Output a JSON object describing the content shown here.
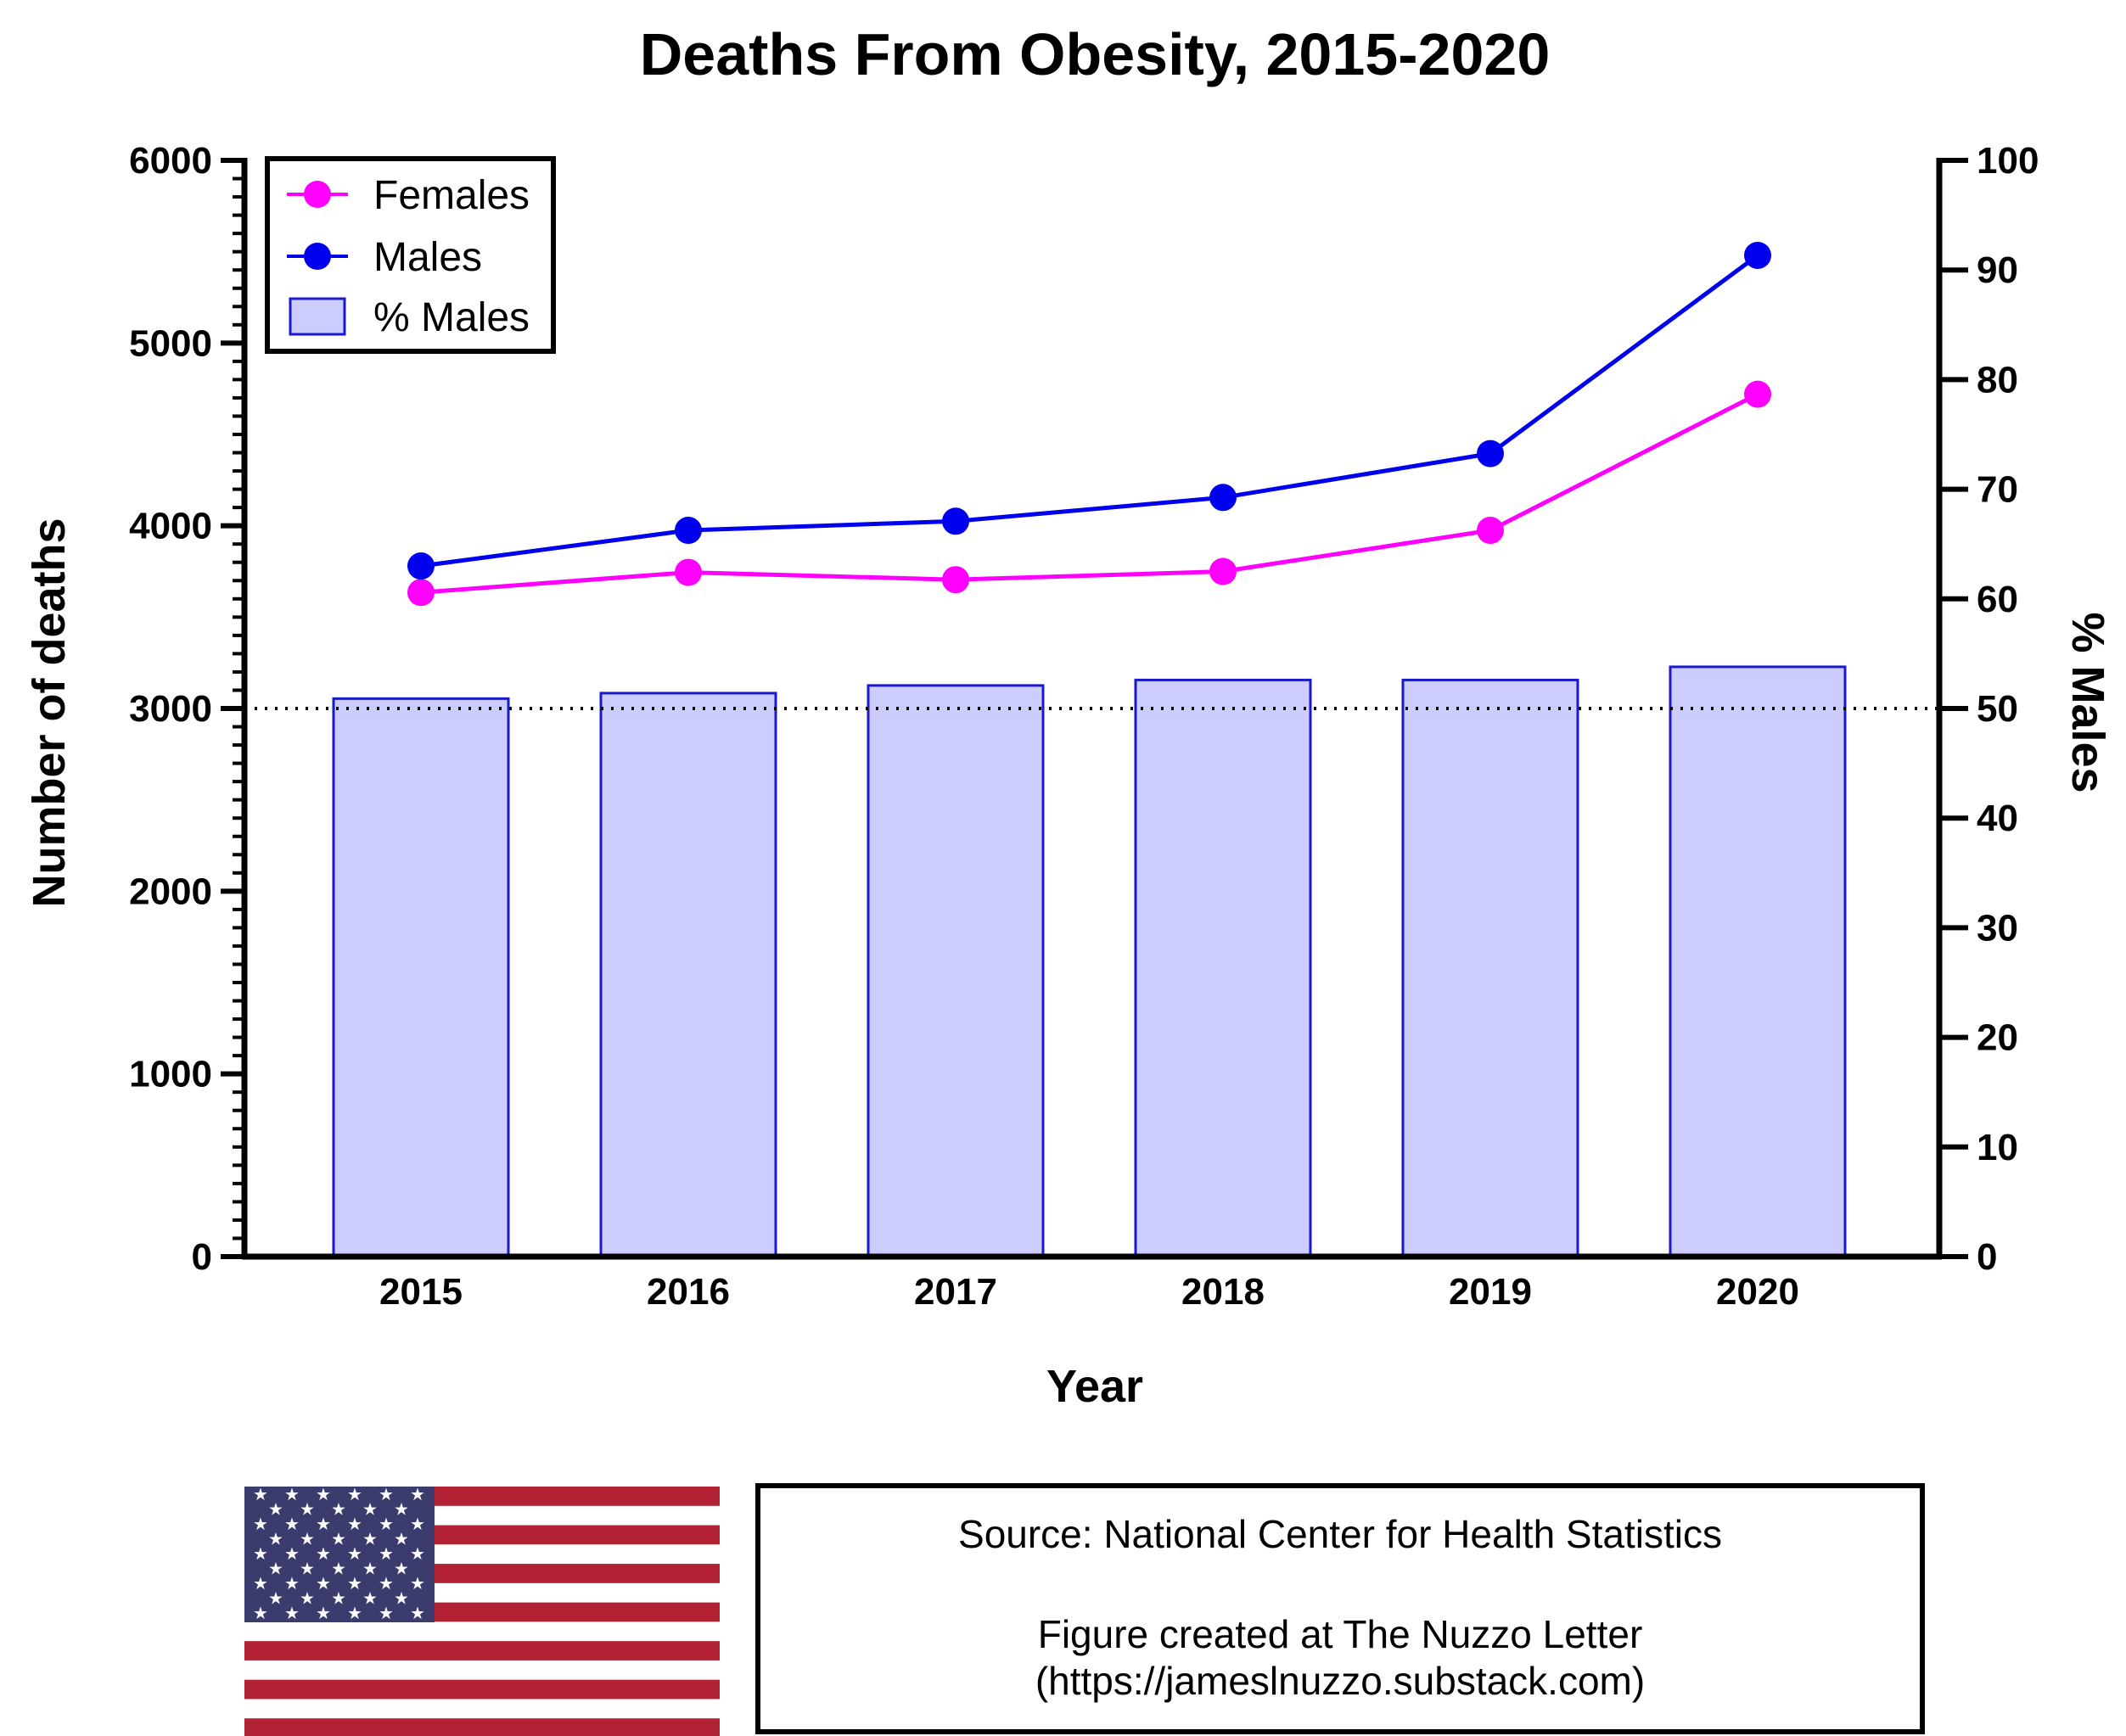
{
  "chart_data": {
    "type": "bar",
    "title": "Deaths From Obesity, 2015-2020",
    "xlabel": "Year",
    "ylabel": "Number of deaths",
    "y2label": "% Males",
    "categories": [
      "2015",
      "2016",
      "2017",
      "2018",
      "2019",
      "2020"
    ],
    "ylim": [
      0,
      6000
    ],
    "yticks": [
      "0",
      "1000",
      "2000",
      "3000",
      "4000",
      "5000",
      "6000"
    ],
    "y2lim": [
      0,
      100
    ],
    "y2ticks": [
      "0",
      "10",
      "20",
      "30",
      "40",
      "50",
      "60",
      "70",
      "80",
      "90",
      "100"
    ],
    "reference_line": {
      "axis": "y2",
      "value": 50,
      "style": "dotted"
    },
    "grid": false,
    "legend_position": "top-left",
    "series": [
      {
        "name": "Females",
        "type": "line",
        "axis": "y",
        "color": "#ff00ff",
        "values": [
          3635,
          3745,
          3705,
          3750,
          3975,
          4720
        ]
      },
      {
        "name": "Males",
        "type": "line",
        "axis": "y",
        "color": "#0000ee",
        "values": [
          3780,
          3975,
          4025,
          4155,
          4395,
          5480
        ]
      },
      {
        "name": "% Males",
        "type": "bar",
        "axis": "y2",
        "color": "#ccccff",
        "edge_color": "#1a1acc",
        "values": [
          50.9,
          51.4,
          52.1,
          52.6,
          52.6,
          53.8
        ]
      }
    ]
  },
  "footer": {
    "source": "Source: National Center for Health Statistics",
    "credit": "Figure created at The Nuzzo Letter",
    "url": "(https://jameslnuzzo.substack.com)"
  },
  "flag": {
    "icon": "us-flag-icon",
    "red": "#b22234",
    "blue": "#3c3b6e"
  }
}
